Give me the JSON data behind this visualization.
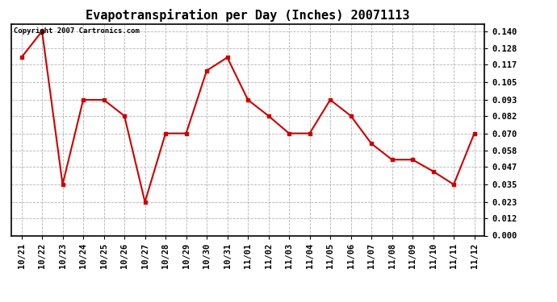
{
  "title": "Evapotranspiration per Day (Inches) 20071113",
  "copyright_text": "Copyright 2007 Cartronics.com",
  "x_labels": [
    "10/21",
    "10/22",
    "10/23",
    "10/24",
    "10/25",
    "10/26",
    "10/27",
    "10/28",
    "10/29",
    "10/30",
    "10/31",
    "11/01",
    "11/02",
    "11/03",
    "11/04",
    "11/05",
    "11/06",
    "11/07",
    "11/08",
    "11/09",
    "11/10",
    "11/11",
    "11/12"
  ],
  "y_values": [
    0.122,
    0.14,
    0.035,
    0.093,
    0.093,
    0.082,
    0.023,
    0.07,
    0.07,
    0.113,
    0.122,
    0.093,
    0.082,
    0.07,
    0.07,
    0.093,
    0.082,
    0.063,
    0.052,
    0.052,
    0.044,
    0.035,
    0.07
  ],
  "line_color": "#cc0000",
  "marker": "s",
  "marker_size": 3,
  "y_ticks": [
    0.0,
    0.012,
    0.023,
    0.035,
    0.047,
    0.058,
    0.07,
    0.082,
    0.093,
    0.105,
    0.117,
    0.128,
    0.14
  ],
  "ylim": [
    0.0,
    0.1448
  ],
  "bg_color": "#ffffff",
  "grid_color": "#aaaaaa",
  "title_fontsize": 11,
  "tick_fontsize": 7.5,
  "copyright_fontsize": 6.5
}
